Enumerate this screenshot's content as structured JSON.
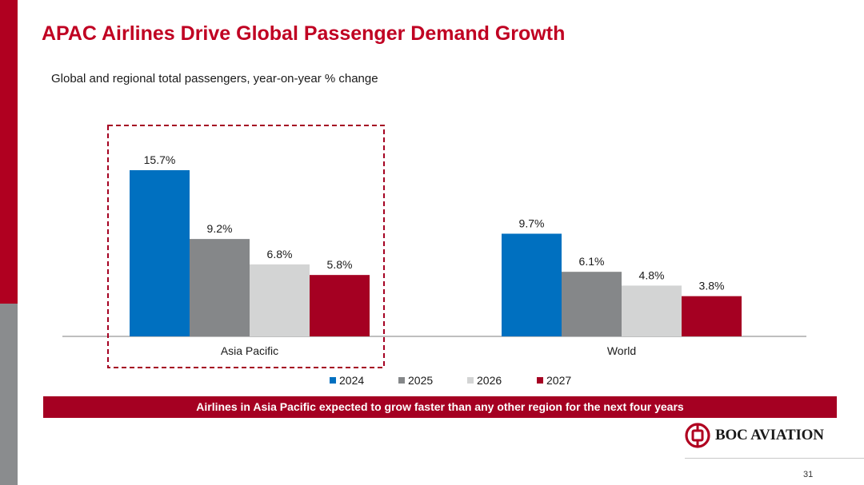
{
  "title": "APAC Airlines Drive Global Passenger Demand Growth",
  "subtitle": "Global and regional total passengers, year-on-year % change",
  "banner": "Airlines in Asia Pacific expected to grow faster than any other region for the next four years",
  "logo": {
    "name": "BOC AVIATION",
    "icon": "boc-logo-icon"
  },
  "page_number": "31",
  "colors": {
    "accent": "#c00022",
    "s2024": "#0070c0",
    "s2025": "#858789",
    "s2026": "#d3d4d4",
    "s2027": "#a50022",
    "highlight_box": "#a50022"
  },
  "chart_data": {
    "type": "bar",
    "categories": [
      "Asia Pacific",
      "World"
    ],
    "series": [
      {
        "name": "2024",
        "values": [
          15.7,
          9.7
        ],
        "labels": [
          "15.7%",
          "9.7%"
        ],
        "color": "#0070c0"
      },
      {
        "name": "2025",
        "values": [
          9.2,
          6.1
        ],
        "labels": [
          "9.2%",
          "6.1%"
        ],
        "color": "#858789"
      },
      {
        "name": "2026",
        "values": [
          6.8,
          4.8
        ],
        "labels": [
          "6.8%",
          "4.8%"
        ],
        "color": "#d3d4d4"
      },
      {
        "name": "2027",
        "values": [
          5.8,
          3.8
        ],
        "labels": [
          "5.8%",
          "3.8%"
        ],
        "color": "#a50022"
      }
    ],
    "ylim": [
      0,
      16
    ],
    "xlabel": "",
    "ylabel": "",
    "legend": "bottom-center",
    "highlighted_category": "Asia Pacific"
  }
}
